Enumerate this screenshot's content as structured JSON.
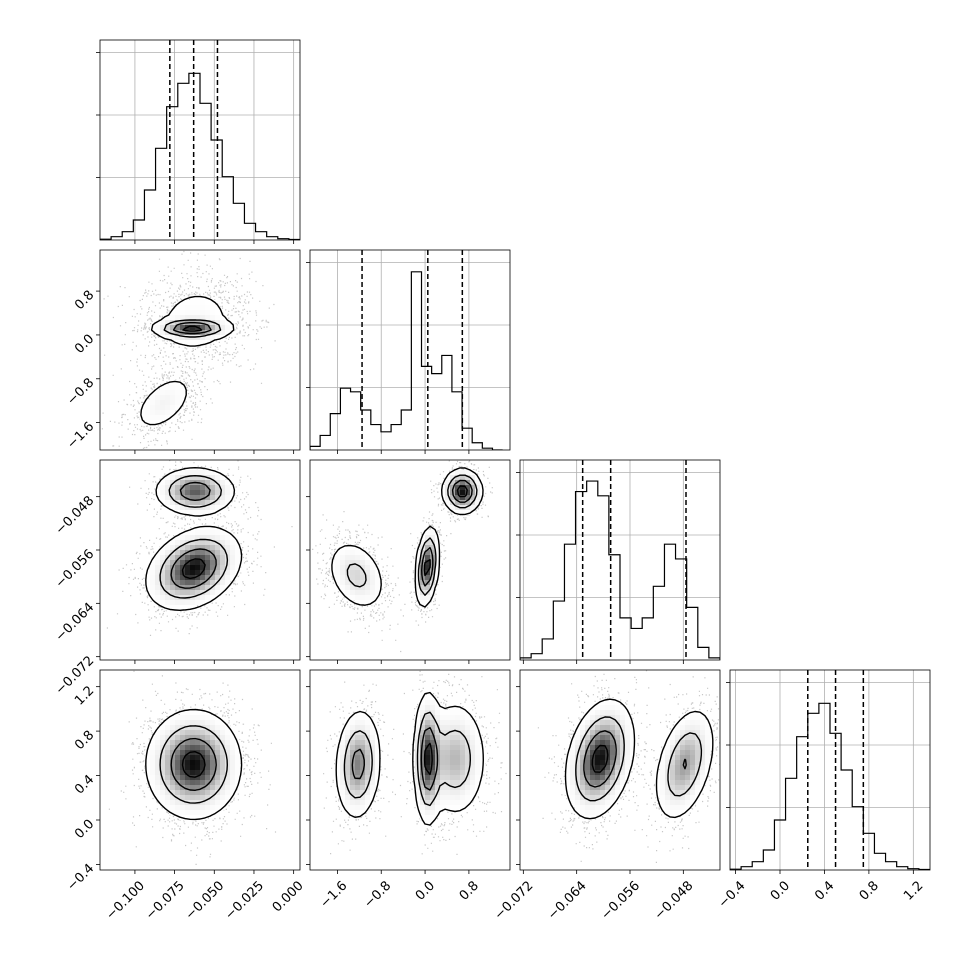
{
  "chart_data": {
    "type": "corner",
    "n_params": 4,
    "param_ranges": [
      [
        -0.122,
        0.004
      ],
      [
        -2.1,
        1.55
      ],
      [
        -0.0725,
        -0.0425
      ],
      [
        -0.45,
        1.35
      ]
    ],
    "ticks": [
      {
        "values": [
          -0.1,
          -0.075,
          -0.05,
          -0.025,
          0.0
        ],
        "labels": [
          "−0.100",
          "−0.075",
          "−0.050",
          "−0.025",
          "0.000"
        ]
      },
      {
        "values": [
          -1.6,
          -0.8,
          0.0,
          0.8
        ],
        "labels": [
          "−1.6",
          "−0.8",
          "0.0",
          "0.8"
        ]
      },
      {
        "values": [
          -0.072,
          -0.064,
          -0.056,
          -0.048
        ],
        "labels": [
          "−0.072",
          "−0.064",
          "−0.056",
          "−0.048"
        ]
      },
      {
        "values": [
          -0.4,
          0.0,
          0.4,
          0.8,
          1.2
        ],
        "labels": [
          "−0.4",
          "0.0",
          "0.4",
          "0.8",
          "1.2"
        ]
      }
    ],
    "histograms": [
      {
        "param": 0,
        "bin_edges": [
          -0.122,
          -0.115,
          -0.108,
          -0.101,
          -0.094,
          -0.087,
          -0.08,
          -0.073,
          -0.066,
          -0.059,
          -0.052,
          -0.045,
          -0.038,
          -0.031,
          -0.024,
          -0.017,
          -0.01,
          -0.003,
          0.004
        ],
        "counts": [
          0.005,
          0.02,
          0.05,
          0.12,
          0.3,
          0.55,
          0.8,
          0.94,
          1.0,
          0.82,
          0.6,
          0.38,
          0.22,
          0.1,
          0.05,
          0.02,
          0.008,
          0.003
        ],
        "quantiles": [
          -0.078,
          -0.063,
          -0.048
        ],
        "ymax": 1.2
      },
      {
        "param": 1,
        "bin_edges": [
          -2.1,
          -1.915,
          -1.73,
          -1.545,
          -1.36,
          -1.175,
          -0.99,
          -0.805,
          -0.62,
          -0.435,
          -0.25,
          -0.065,
          0.12,
          0.305,
          0.49,
          0.675,
          0.86,
          1.045,
          1.23,
          1.415
        ],
        "counts": [
          0.02,
          0.08,
          0.2,
          0.34,
          0.32,
          0.22,
          0.14,
          0.1,
          0.14,
          0.22,
          0.98,
          0.46,
          0.42,
          0.52,
          0.32,
          0.12,
          0.04,
          0.01,
          0.0
        ],
        "quantiles": [
          -1.15,
          0.05,
          0.68
        ],
        "ymax": 1.1
      },
      {
        "param": 2,
        "bin_edges": [
          -0.0725,
          -0.07083,
          -0.06917,
          -0.0675,
          -0.06583,
          -0.06417,
          -0.0625,
          -0.06083,
          -0.05917,
          -0.0575,
          -0.05583,
          -0.05417,
          -0.0525,
          -0.05083,
          -0.04917,
          -0.0475,
          -0.04583,
          -0.04417,
          -0.0425
        ],
        "counts": [
          0.01,
          0.03,
          0.1,
          0.28,
          0.55,
          0.8,
          0.85,
          0.78,
          0.5,
          0.2,
          0.15,
          0.2,
          0.35,
          0.55,
          0.48,
          0.25,
          0.06,
          0.01
        ],
        "quantiles": [
          -0.0631,
          -0.0589,
          -0.0476
        ],
        "ymax": 0.95
      },
      {
        "param": 3,
        "bin_edges": [
          -0.45,
          -0.35,
          -0.25,
          -0.15,
          -0.05,
          0.05,
          0.15,
          0.25,
          0.35,
          0.45,
          0.55,
          0.65,
          0.75,
          0.85,
          0.95,
          1.05,
          1.15,
          1.25,
          1.35
        ],
        "counts": [
          0.005,
          0.02,
          0.05,
          0.12,
          0.3,
          0.55,
          0.8,
          0.94,
          1.0,
          0.82,
          0.6,
          0.38,
          0.22,
          0.1,
          0.05,
          0.02,
          0.008,
          0.003
        ],
        "quantiles": [
          0.25,
          0.5,
          0.75
        ],
        "ymax": 1.2
      }
    ],
    "joint": [
      {
        "row": 1,
        "col": 0,
        "modes": [
          {
            "cx": -0.062,
            "cy": 0.25,
            "sx": 0.016,
            "sy": 0.42,
            "rho": 0.1,
            "w": 0.45
          },
          {
            "cx": -0.064,
            "cy": 0.12,
            "sx": 0.011,
            "sy": 0.08,
            "rho": 0.0,
            "w": 0.3
          },
          {
            "cx": -0.082,
            "cy": -1.25,
            "sx": 0.011,
            "sy": 0.3,
            "rho": 0.5,
            "w": 0.25
          }
        ]
      },
      {
        "row": 2,
        "col": 0,
        "modes": [
          {
            "cx": -0.062,
            "cy": -0.0472,
            "sx": 0.012,
            "sy": 0.0017,
            "rho": 0.0,
            "w": 0.3
          },
          {
            "cx": -0.063,
            "cy": -0.0588,
            "sx": 0.014,
            "sy": 0.0029,
            "rho": 0.3,
            "w": 0.7
          }
        ]
      },
      {
        "row": 3,
        "col": 0,
        "modes": [
          {
            "cx": -0.063,
            "cy": 0.5,
            "sx": 0.014,
            "sy": 0.23,
            "rho": 0.0,
            "w": 1.0
          }
        ]
      },
      {
        "row": 2,
        "col": 1,
        "modes": [
          {
            "cx": -1.25,
            "cy": -0.0598,
            "sx": 0.27,
            "sy": 0.0027,
            "rho": -0.3,
            "w": 0.33
          },
          {
            "cx": 0.04,
            "cy": -0.0585,
            "sx": 0.1,
            "sy": 0.0028,
            "rho": 0.3,
            "w": 0.33
          },
          {
            "cx": 0.68,
            "cy": -0.0472,
            "sx": 0.17,
            "sy": 0.0016,
            "rho": 0.0,
            "w": 0.34
          }
        ]
      },
      {
        "row": 3,
        "col": 1,
        "modes": [
          {
            "cx": -1.22,
            "cy": 0.5,
            "sx": 0.2,
            "sy": 0.24,
            "rho": 0.1,
            "w": 0.33
          },
          {
            "cx": 0.05,
            "cy": 0.55,
            "sx": 0.12,
            "sy": 0.28,
            "rho": 0.0,
            "w": 0.3
          },
          {
            "cx": 0.55,
            "cy": 0.55,
            "sx": 0.28,
            "sy": 0.26,
            "rho": 0.0,
            "w": 0.37
          }
        ]
      },
      {
        "row": 3,
        "col": 2,
        "modes": [
          {
            "cx": -0.0605,
            "cy": 0.55,
            "sx": 0.0024,
            "sy": 0.25,
            "rho": 0.3,
            "w": 0.65
          },
          {
            "cx": -0.0478,
            "cy": 0.5,
            "sx": 0.0022,
            "sy": 0.25,
            "rho": 0.4,
            "w": 0.35
          }
        ]
      }
    ]
  }
}
